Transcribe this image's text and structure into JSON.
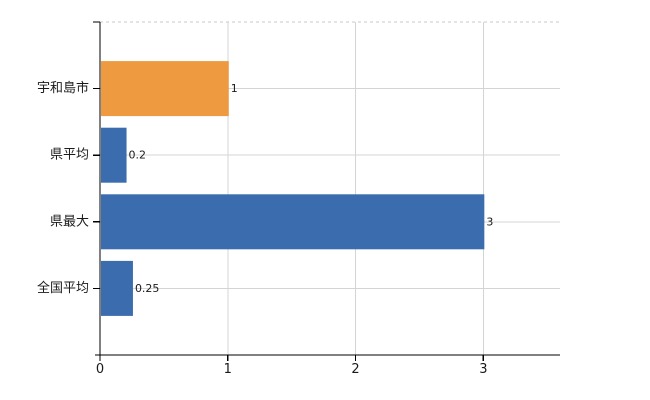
{
  "chart_data": {
    "type": "bar",
    "orientation": "horizontal",
    "title": "",
    "categories": [
      "宇和島市",
      "県平均",
      "県最大",
      "全国平均"
    ],
    "values": [
      1,
      0.2,
      3,
      0.25
    ],
    "value_labels": [
      "1",
      "0.2",
      "3",
      "0.25"
    ],
    "bar_colors": [
      "#ED9A40",
      "#3B6DAE",
      "#3B6DAE",
      "#3B6DAE"
    ],
    "x_ticks": [
      0,
      1,
      2,
      3
    ],
    "x_tick_labels": [
      "0",
      "1",
      "2",
      "3"
    ],
    "xlim": [
      0,
      3.6
    ],
    "grid": true,
    "legend": false,
    "colors": {
      "accent_orange": "#ED9A40",
      "accent_blue": "#3B6DAE",
      "axis": "#000000",
      "grid": "#D4D4D4",
      "top_border": "#C9C9C9",
      "text": "#1A1A1A",
      "background": "#FFFFFF"
    }
  }
}
